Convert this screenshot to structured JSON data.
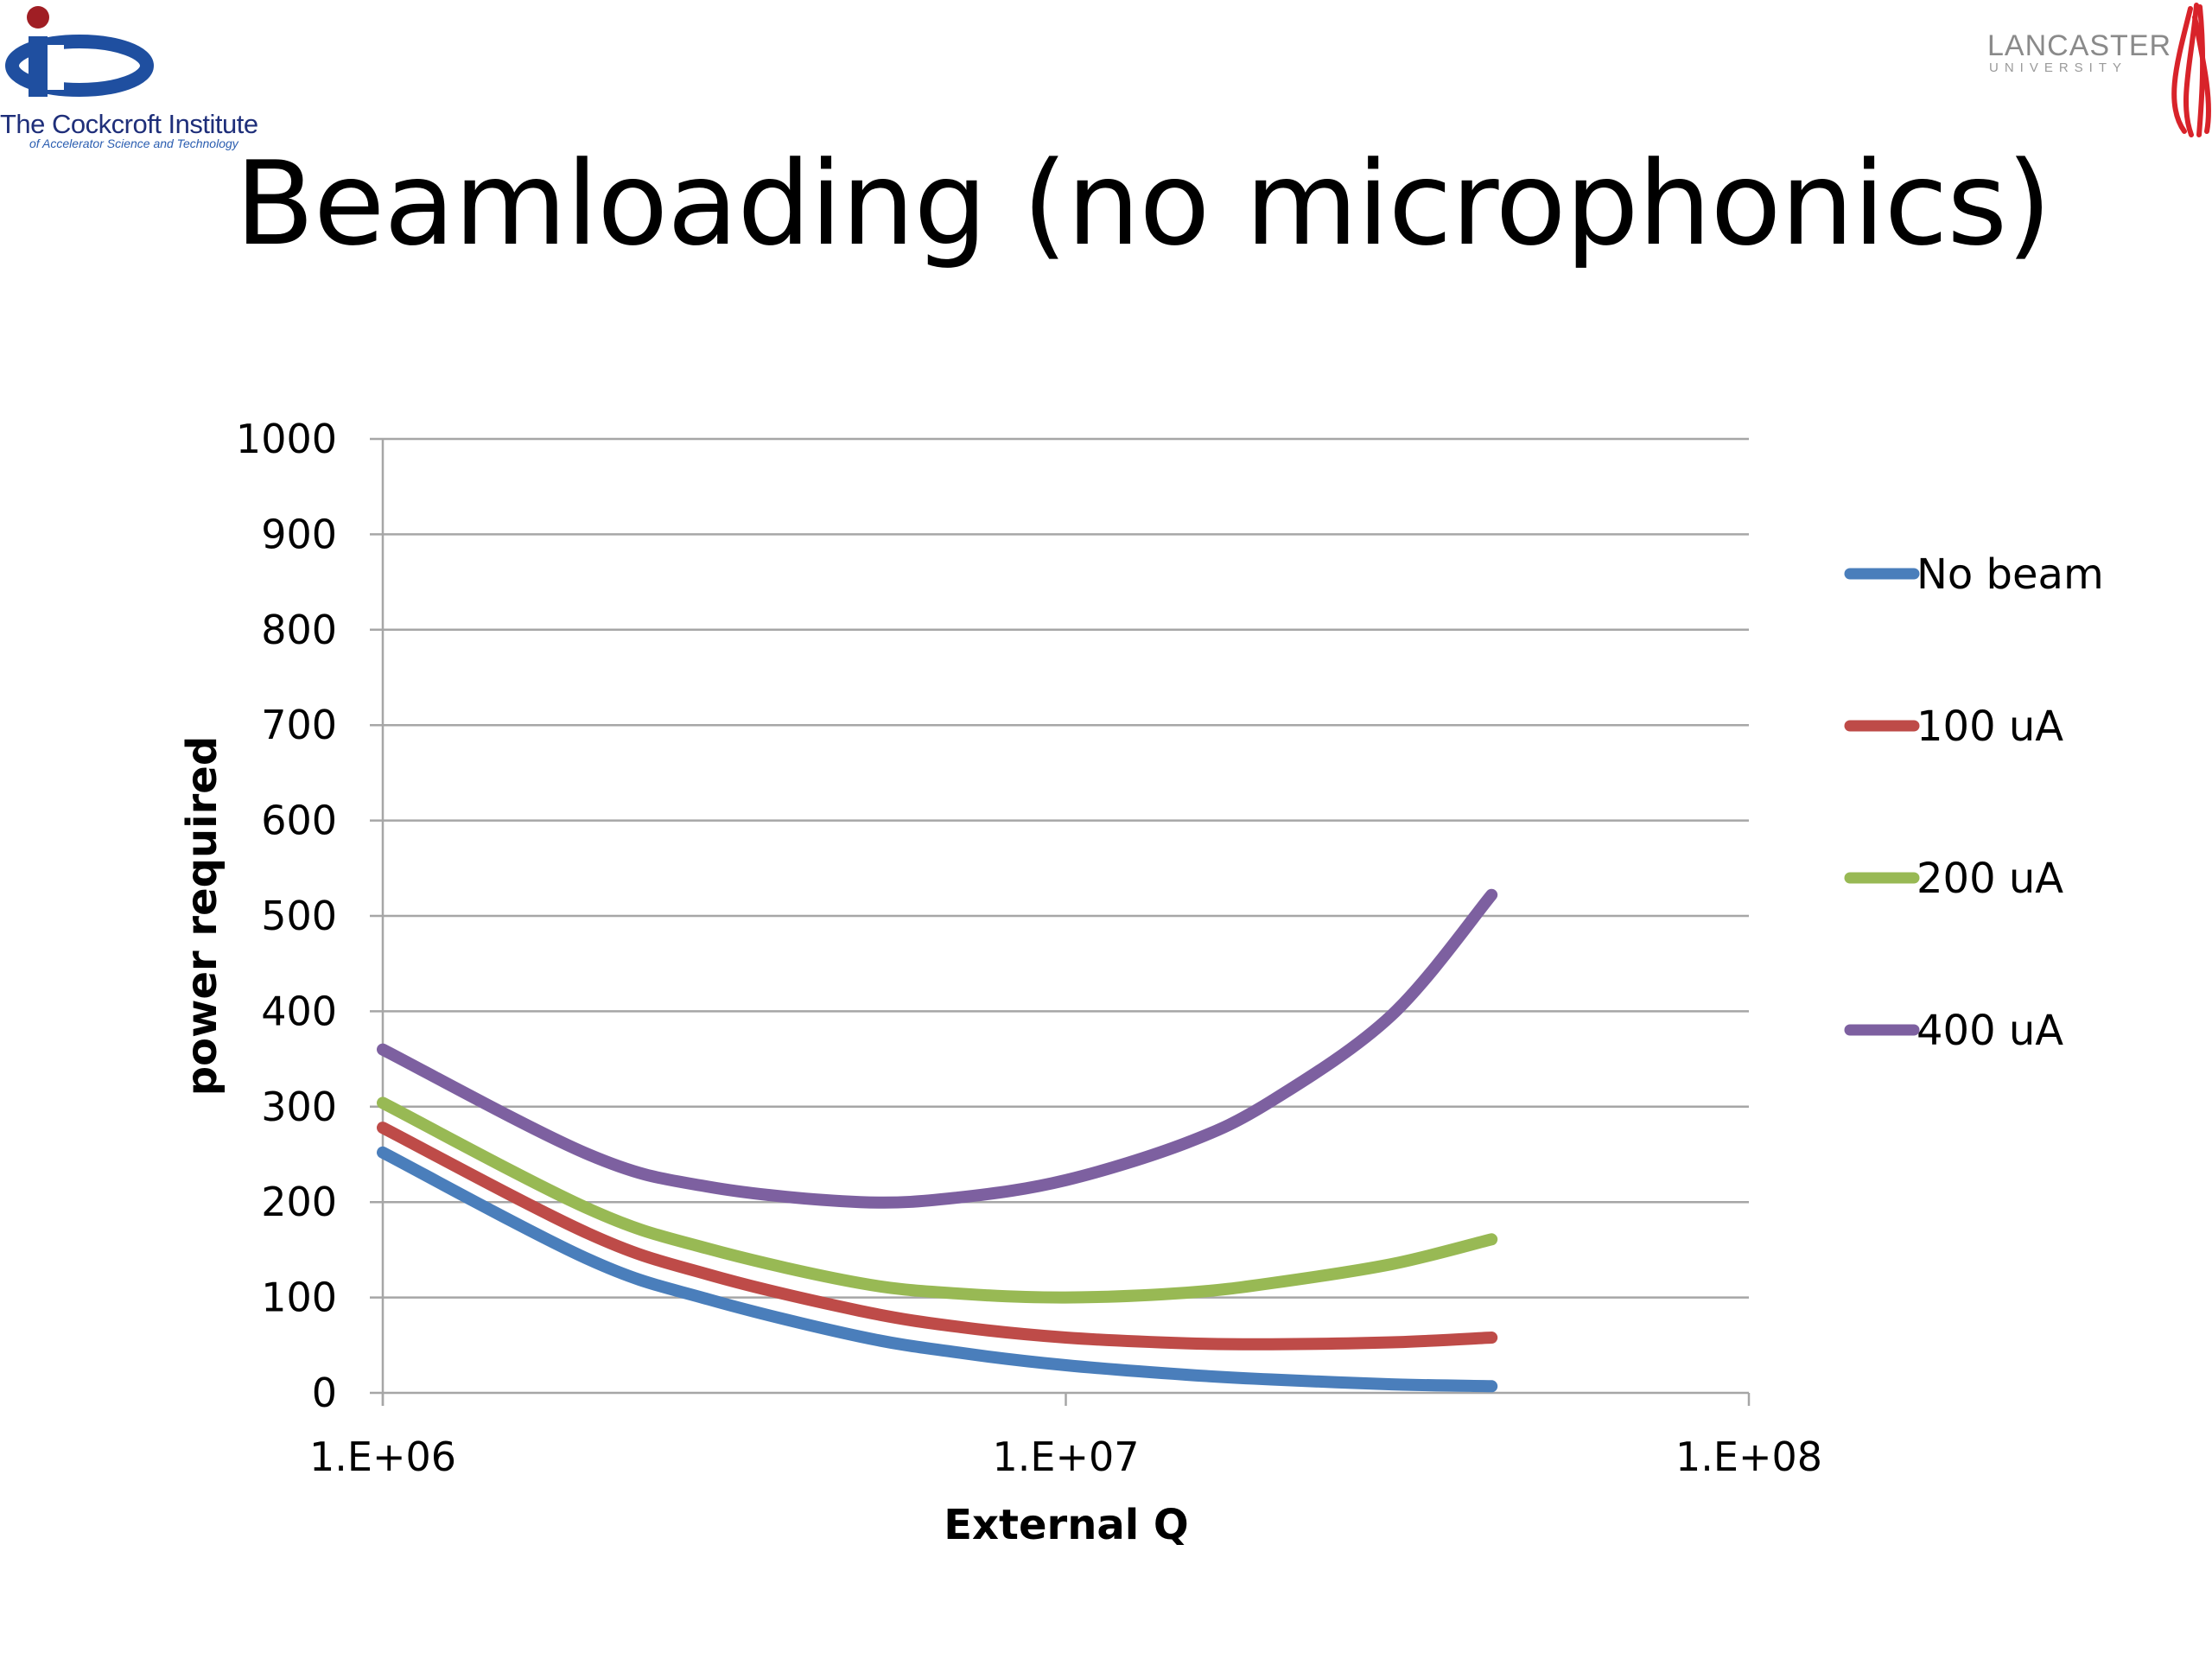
{
  "slide": {
    "title": "Beamloading (no microphonics)"
  },
  "logos": {
    "left": {
      "name": "The Cockcroft Institute",
      "subtitle": "of Accelerator Science and Technology"
    },
    "right": {
      "name": "LANCASTER",
      "subtitle": "UNIVERSITY"
    }
  },
  "colors": {
    "no_beam": "#4a7ebb",
    "100uA": "#be4b48",
    "200uA": "#98b954",
    "400uA": "#7d60a0",
    "grid": "#a6a6a6",
    "cockcroft_red": "#a01e24",
    "cockcroft_blue": "#1f4fa0",
    "lancaster_red": "#d8232a"
  },
  "chart_data": {
    "type": "line",
    "x_scale": "log",
    "xlabel": "External Q",
    "ylabel": "power required",
    "xlim": [
      1000000,
      100000000
    ],
    "ylim": [
      0,
      1000
    ],
    "x_ticks": [
      1000000,
      10000000,
      100000000
    ],
    "x_tick_labels": [
      "1.E+06",
      "1.E+07",
      "1.E+08"
    ],
    "y_ticks": [
      0,
      100,
      200,
      300,
      400,
      500,
      600,
      700,
      800,
      900,
      1000
    ],
    "y_tick_labels": [
      "0",
      "100",
      "200",
      "300",
      "400",
      "500",
      "600",
      "700",
      "800",
      "900",
      "1000"
    ],
    "grid": "horizontal",
    "legend_position": "right",
    "x": [
      1000000,
      2000000,
      3000000,
      5000000,
      7000000,
      10000000,
      15000000,
      20000000,
      30000000,
      42000000
    ],
    "series": [
      {
        "name": "No beam",
        "color_key": "no_beam",
        "values": [
          252,
          140,
          98,
          59,
          42,
          29,
          19,
          14,
          9,
          7
        ]
      },
      {
        "name": "100 uA",
        "color_key": "100uA",
        "values": [
          278,
          167,
          124,
          86,
          69,
          58,
          52,
          51,
          53,
          58
        ]
      },
      {
        "name": "200 uA",
        "color_key": "200uA",
        "values": [
          304,
          193,
          151,
          115,
          104,
          100,
          105,
          115,
          135,
          161
        ]
      },
      {
        "name": "400 uA",
        "color_key": "400uA",
        "values": [
          360,
          250,
          216,
          200,
          205,
          223,
          262,
          306,
          396,
          522
        ]
      }
    ]
  }
}
